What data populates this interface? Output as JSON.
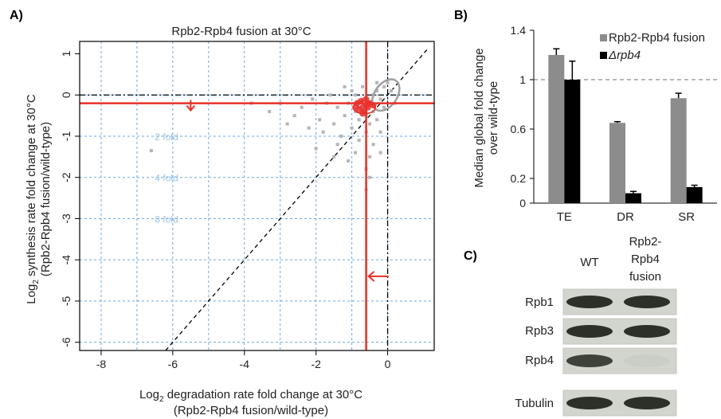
{
  "panel_a": {
    "label": "A)",
    "title": "Rpb2-Rpb4 fusion at 30°C",
    "xlabel_main": "Log",
    "xlabel_sub": "2",
    "xlabel_rest": " degradation rate fold change at 30°C",
    "xlabel_line2": "(Rpb2-Rpb4 fusion/wild-type)",
    "ylabel_main": "Log",
    "ylabel_sub": "2",
    "ylabel_rest": " synthesis rate fold change at 30°C",
    "ylabel_line2": "(Rpb2-Rpb4 fusion/wild-type)",
    "fold_labels": [
      "2 fold",
      "4 fold",
      "8 fold"
    ]
  },
  "panel_b": {
    "label": "B)",
    "ylabel_line1": "Median global fold change",
    "ylabel_line2": "over wild-type",
    "legend": [
      "Rpb2-Rpb4 fusion",
      "Δrpb4"
    ],
    "legend_colors": [
      "#8c8c8c",
      "#000000"
    ]
  },
  "panel_c": {
    "label": "C)",
    "col_headers": [
      "WT",
      "Rpb2-",
      "Rpb4",
      "fusion"
    ],
    "row_labels": [
      "Rpb1",
      "Rpb3",
      "Rpb4",
      "Tubulin"
    ],
    "band_intensity": {
      "wt": [
        1,
        1,
        0.9,
        1
      ],
      "fusion": [
        1,
        1,
        0.12,
        1
      ]
    }
  },
  "chart_data": [
    {
      "type": "scatter",
      "title": "Rpb2-Rpb4 fusion at 30°C",
      "xlabel": "Log2 degradation rate fold change at 30°C (Rpb2-Rpb4 fusion/wild-type)",
      "ylabel": "Log2 synthesis rate fold change at 30°C (Rpb2-Rpb4 fusion/wild-type)",
      "xlim": [
        -8.6,
        1.3
      ],
      "ylim": [
        -6.2,
        1.3
      ],
      "xticks": [
        -8,
        -6,
        -4,
        -2,
        0
      ],
      "yticks": [
        1,
        0,
        -1,
        -2,
        -3,
        -4,
        -5,
        -6
      ],
      "median_x": -0.6,
      "median_y": -0.2,
      "points": [
        [
          -0.5,
          -0.2
        ],
        [
          -0.8,
          -0.3
        ],
        [
          -0.3,
          0.1
        ],
        [
          -1.1,
          -0.2
        ],
        [
          -0.6,
          -0.5
        ],
        [
          -0.2,
          -0.1
        ],
        [
          -0.9,
          0.0
        ],
        [
          -0.4,
          -0.4
        ],
        [
          -1.4,
          -0.3
        ],
        [
          -0.7,
          -0.1
        ],
        [
          -0.1,
          0.2
        ],
        [
          -1.2,
          -0.5
        ],
        [
          -0.5,
          -0.7
        ],
        [
          -0.3,
          -0.6
        ],
        [
          0.1,
          0.1
        ],
        [
          -1.7,
          -0.2
        ],
        [
          -2.1,
          -0.1
        ],
        [
          -1.0,
          -0.8
        ],
        [
          -0.6,
          -0.9
        ],
        [
          -0.8,
          -1.1
        ],
        [
          -0.4,
          -1.2
        ],
        [
          -1.5,
          -0.7
        ],
        [
          -2.4,
          -0.3
        ],
        [
          -1.9,
          -0.6
        ],
        [
          -0.2,
          -0.9
        ],
        [
          -0.9,
          -1.4
        ],
        [
          -1.3,
          -1.0
        ],
        [
          -0.5,
          -1.5
        ],
        [
          -1.8,
          -0.9
        ],
        [
          -2.6,
          -0.5
        ],
        [
          -3.0,
          -0.2
        ],
        [
          -2.2,
          -0.8
        ],
        [
          -0.7,
          0.2
        ],
        [
          -0.3,
          0.3
        ],
        [
          -1.0,
          0.1
        ],
        [
          -1.6,
          0.0
        ],
        [
          -0.1,
          -0.3
        ],
        [
          0.2,
          -0.2
        ],
        [
          -0.6,
          -1.8
        ],
        [
          -1.1,
          -1.6
        ],
        [
          -3.8,
          -0.2
        ],
        [
          -6.6,
          -1.35
        ],
        [
          -1.4,
          -1.2
        ],
        [
          -0.8,
          -0.6
        ],
        [
          -0.4,
          0.0
        ],
        [
          -1.2,
          0.2
        ],
        [
          0.0,
          0.3
        ],
        [
          -0.9,
          -0.4
        ],
        [
          -2.8,
          -0.7
        ],
        [
          -3.3,
          -0.4
        ],
        [
          -0.6,
          -2.3
        ],
        [
          -1.5,
          -1.5
        ],
        [
          -0.2,
          -1.4
        ],
        [
          -2.0,
          -1.3
        ],
        [
          -0.5,
          -2.0
        ]
      ],
      "red_cluster": [
        [
          -0.7,
          -0.3
        ],
        [
          -0.6,
          -0.25
        ],
        [
          -0.8,
          -0.35
        ],
        [
          -0.5,
          -0.2
        ],
        [
          -0.65,
          -0.4
        ],
        [
          -0.75,
          -0.15
        ],
        [
          -0.55,
          -0.3
        ],
        [
          -0.9,
          -0.3
        ],
        [
          -0.4,
          -0.25
        ],
        [
          -0.7,
          -0.45
        ],
        [
          -0.6,
          -0.1
        ],
        [
          -0.85,
          -0.2
        ]
      ]
    },
    {
      "type": "bar",
      "categories": [
        "TE",
        "DR",
        "SR"
      ],
      "series": [
        {
          "name": "Rpb2-Rpb4 fusion",
          "values": [
            1.2,
            0.65,
            0.85
          ],
          "errors": [
            0.05,
            0.01,
            0.04
          ]
        },
        {
          "name": "Δrpb4",
          "values": [
            1.0,
            0.08,
            0.13
          ],
          "errors": [
            0.15,
            0.015,
            0.015
          ]
        }
      ],
      "ylim": [
        0,
        1.4
      ],
      "yticks": [
        0,
        0.2,
        0.6,
        1,
        1.4
      ],
      "ylabel": "Median global fold change over wild-type",
      "reference_line": 1
    }
  ]
}
